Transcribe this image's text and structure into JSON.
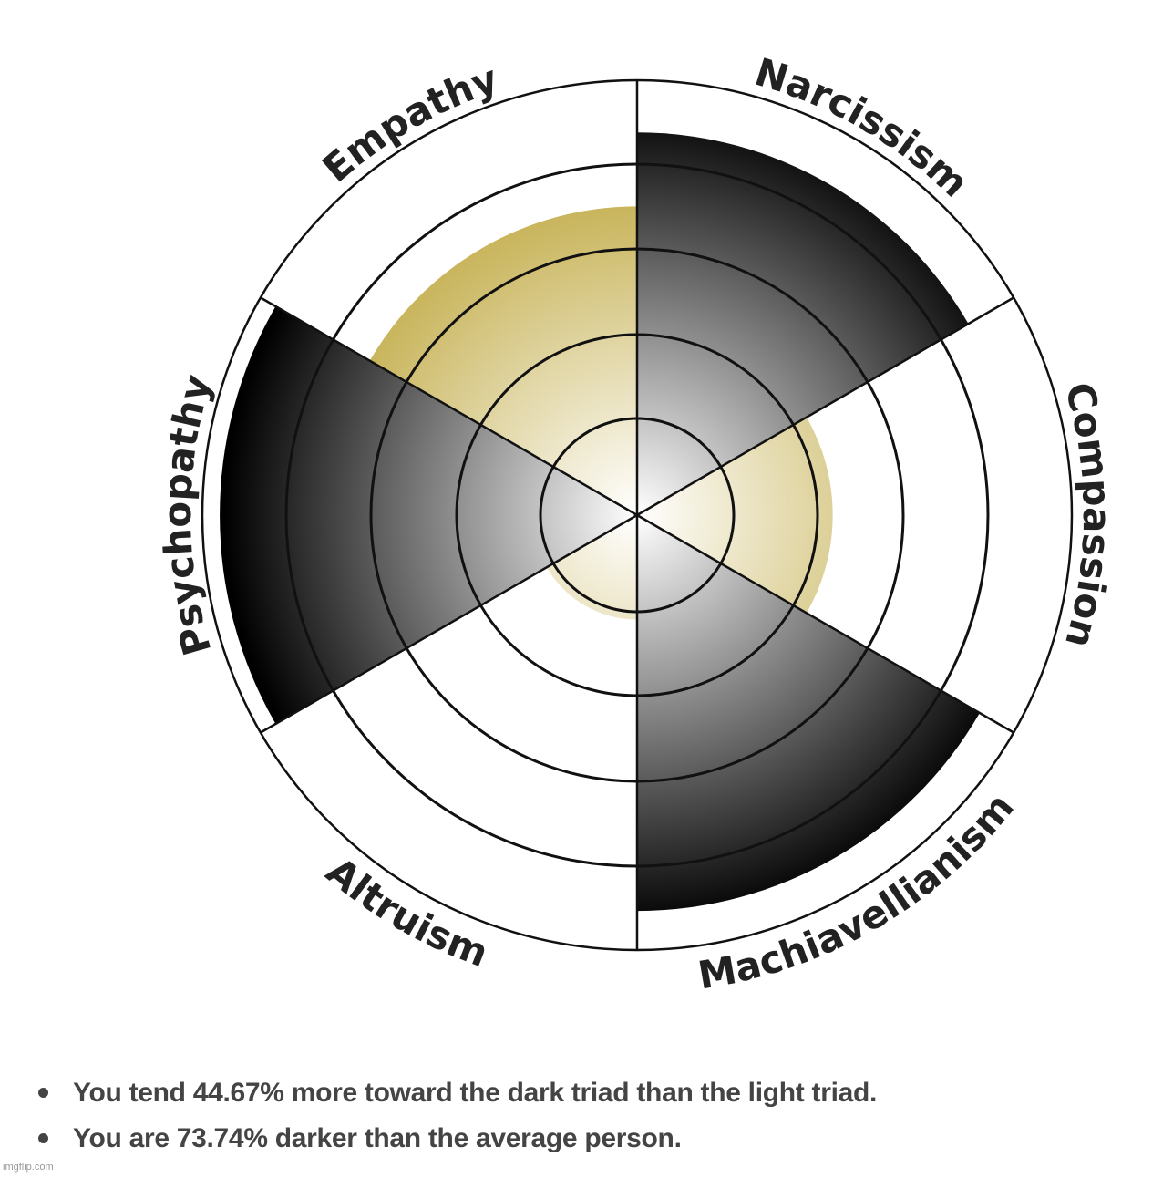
{
  "chart_data": {
    "type": "polar-area",
    "scale": [
      0,
      100
    ],
    "rings": 5,
    "sectors": [
      {
        "label": "Narcissism",
        "value": 88,
        "group": "dark"
      },
      {
        "label": "Compassion",
        "value": 45,
        "group": "light"
      },
      {
        "label": "Machiavellianism",
        "value": 91,
        "group": "dark"
      },
      {
        "label": "Altruism",
        "value": 24,
        "group": "light"
      },
      {
        "label": "Psychopathy",
        "value": 96,
        "group": "dark"
      },
      {
        "label": "Empathy",
        "value": 71,
        "group": "light"
      }
    ],
    "colors": {
      "dark": "#000000",
      "light": "#c8b45a",
      "center": "#ffffff",
      "lines": "#111111"
    }
  },
  "results": [
    "You tend 44.67% more toward the dark triad than the light triad.",
    "You are 73.74% darker than the average person."
  ],
  "watermark": "imgflip.com"
}
